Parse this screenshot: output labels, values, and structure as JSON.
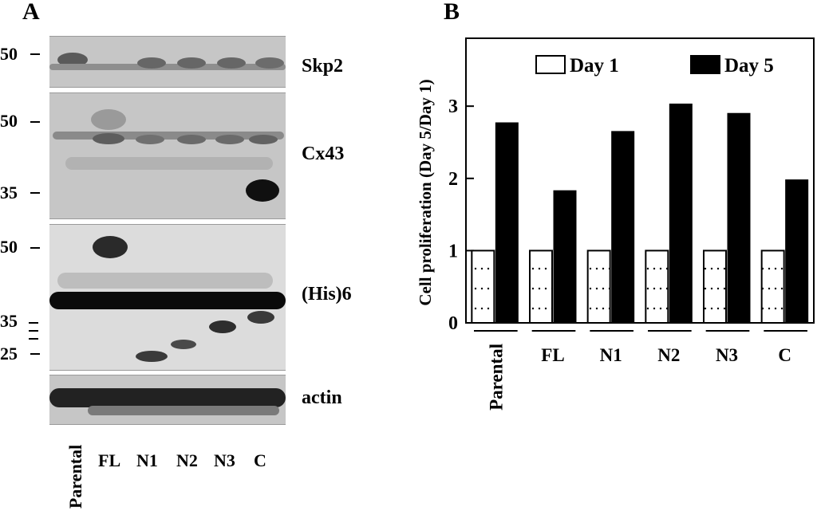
{
  "panel_a": {
    "letter": "A",
    "blots": [
      {
        "name": "Skp2",
        "mw": [
          "50"
        ]
      },
      {
        "name": "Cx43",
        "mw": [
          "50",
          "35"
        ]
      },
      {
        "name": "(His)6",
        "mw": [
          "50",
          "35",
          "25"
        ]
      },
      {
        "name": "actin",
        "mw": []
      }
    ],
    "lanes": [
      "Parental",
      "FL",
      "N1",
      "N2",
      "N3",
      "C"
    ]
  },
  "panel_b": {
    "letter": "B"
  },
  "chart_data": {
    "type": "bar",
    "categories": [
      "Parental",
      "FL",
      "N1",
      "N2",
      "N3",
      "C"
    ],
    "series": [
      {
        "name": "Day 1",
        "values": [
          1,
          1,
          1,
          1,
          1,
          1
        ],
        "color": "#ffffff",
        "pattern": "dotted"
      },
      {
        "name": "Day 5",
        "values": [
          2.77,
          1.83,
          2.65,
          3.03,
          2.9,
          1.98
        ],
        "color": "#000000"
      }
    ],
    "title": "",
    "xlabel": "",
    "ylabel": "Cell proliferation (Day 5/Day 1)",
    "ylim": [
      0,
      3.94
    ],
    "yticks": [
      0,
      1,
      2,
      3
    ],
    "grid": false,
    "legend": "top"
  }
}
